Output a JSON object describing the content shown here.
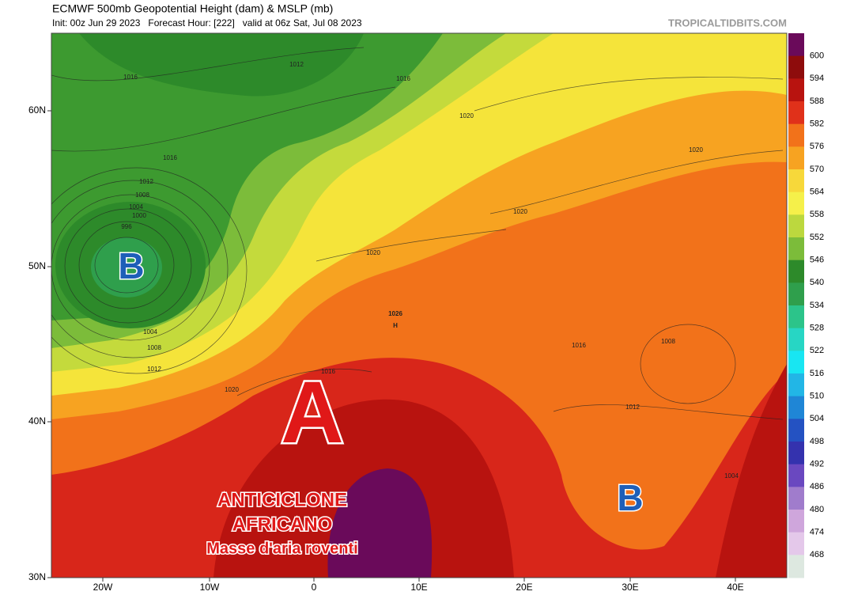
{
  "header": {
    "title": "ECMWF 500mb Geopotential Height (dam) & MSLP (mb)",
    "subtitle": "Init: 00z Jun 29 2023   Forecast Hour: [222]   valid at 06z Sat, Jul 08 2023",
    "watermark": "TROPICALTIDBITS.COM"
  },
  "map": {
    "lat_labels": [
      "60N",
      "50N",
      "40N",
      "30N"
    ],
    "lon_labels": [
      "20W",
      "10W",
      "0",
      "10E",
      "20E",
      "30E",
      "40E"
    ],
    "isobar_labels": [
      "1016",
      "1012",
      "1016",
      "1016",
      "1012",
      "1008",
      "1004",
      "1000",
      "996",
      "1004",
      "1008",
      "1012",
      "1020",
      "1020",
      "1020",
      "1020",
      "1026",
      "H",
      "1016",
      "1008",
      "1012",
      "1004",
      "1020",
      "1016"
    ],
    "annotations": {
      "low_west": "B",
      "high": "A",
      "high_name_1": "ANTICICLONE",
      "high_name_2": "AFRICANO",
      "high_desc": "Masse d'aria roventi",
      "low_east": "B"
    }
  },
  "colorbar": {
    "labels": [
      600,
      594,
      588,
      582,
      576,
      570,
      564,
      558,
      552,
      546,
      540,
      534,
      528,
      522,
      516,
      510,
      504,
      498,
      492,
      486,
      480,
      474,
      468
    ],
    "colors": [
      "#6a0a5a",
      "#8e0c0c",
      "#b8130f",
      "#e0311a",
      "#f2721a",
      "#f7a321",
      "#f7d83a",
      "#f5f04a",
      "#bcd83e",
      "#7cbc3a",
      "#2d8a2a",
      "#2f9f4c",
      "#2cc48a",
      "#27d6c4",
      "#18e6f2",
      "#22b6e6",
      "#1f86d6",
      "#2452c2",
      "#3432ae",
      "#6a48c0",
      "#a07ccc",
      "#cfa6dc",
      "#e4c8ea",
      "#dde8e0"
    ]
  }
}
